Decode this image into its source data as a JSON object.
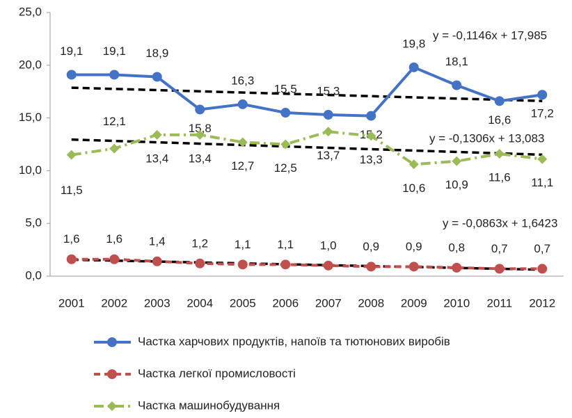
{
  "chart_data": {
    "type": "line",
    "categories": [
      "2001",
      "2002",
      "2003",
      "2004",
      "2005",
      "2006",
      "2007",
      "2008",
      "2009",
      "2010",
      "2011",
      "2012"
    ],
    "series": [
      {
        "name": "Частка харчових продуктів, напоїв та тютюнових виробів",
        "color": "#4472c4",
        "style": "solid",
        "marker": "circle",
        "values": [
          19.1,
          19.1,
          18.9,
          15.8,
          16.3,
          15.5,
          15.3,
          15.2,
          19.8,
          18.1,
          16.6,
          17.2
        ],
        "value_labels": [
          "19,1",
          "19,1",
          "18,9",
          "15,8",
          "16,3",
          "15,5",
          "15,3",
          "15,2",
          "19,8",
          "18,1",
          "16,6",
          "17,2"
        ],
        "trendline": {
          "label": "y = -0,1146x + 17,985",
          "slope": -0.1146,
          "intercept": 17.985
        }
      },
      {
        "name": "Частка легкої промисловості",
        "color": "#c0504d",
        "style": "dash",
        "marker": "circle",
        "values": [
          1.6,
          1.6,
          1.4,
          1.2,
          1.1,
          1.1,
          1.0,
          0.9,
          0.9,
          0.8,
          0.7,
          0.7
        ],
        "value_labels": [
          "1,6",
          "1,6",
          "1,4",
          "1,2",
          "1,1",
          "1,1",
          "1,0",
          "0,9",
          "0,9",
          "0,8",
          "0,7",
          "0,7"
        ],
        "trendline": {
          "label": "y = -0,0863x + 1,6423",
          "slope": -0.0863,
          "intercept": 1.6423
        }
      },
      {
        "name": "Частка машинобудування",
        "color": "#9bbb59",
        "style": "dashdot",
        "marker": "diamond",
        "values": [
          11.5,
          12.1,
          13.4,
          13.4,
          12.7,
          12.5,
          13.7,
          13.3,
          10.6,
          10.9,
          11.6,
          11.1
        ],
        "value_labels": [
          "11,5",
          "12,1",
          "13,4",
          "13,4",
          "12,7",
          "12,5",
          "13,7",
          "13,3",
          "10,6",
          "10,9",
          "11,6",
          "11,1"
        ],
        "trendline": {
          "label": "y = -0,1306x + 13,083",
          "slope": -0.1306,
          "intercept": 13.083
        }
      }
    ],
    "ylim": [
      0,
      25
    ],
    "yticks": [
      {
        "value": 0,
        "label": "0,0"
      },
      {
        "value": 5,
        "label": "5,0"
      },
      {
        "value": 10,
        "label": "10,0"
      },
      {
        "value": 15,
        "label": "15,0"
      },
      {
        "value": 20,
        "label": "20,0"
      },
      {
        "value": 25,
        "label": "25,0"
      }
    ],
    "grid": false,
    "legend": "bottom"
  }
}
